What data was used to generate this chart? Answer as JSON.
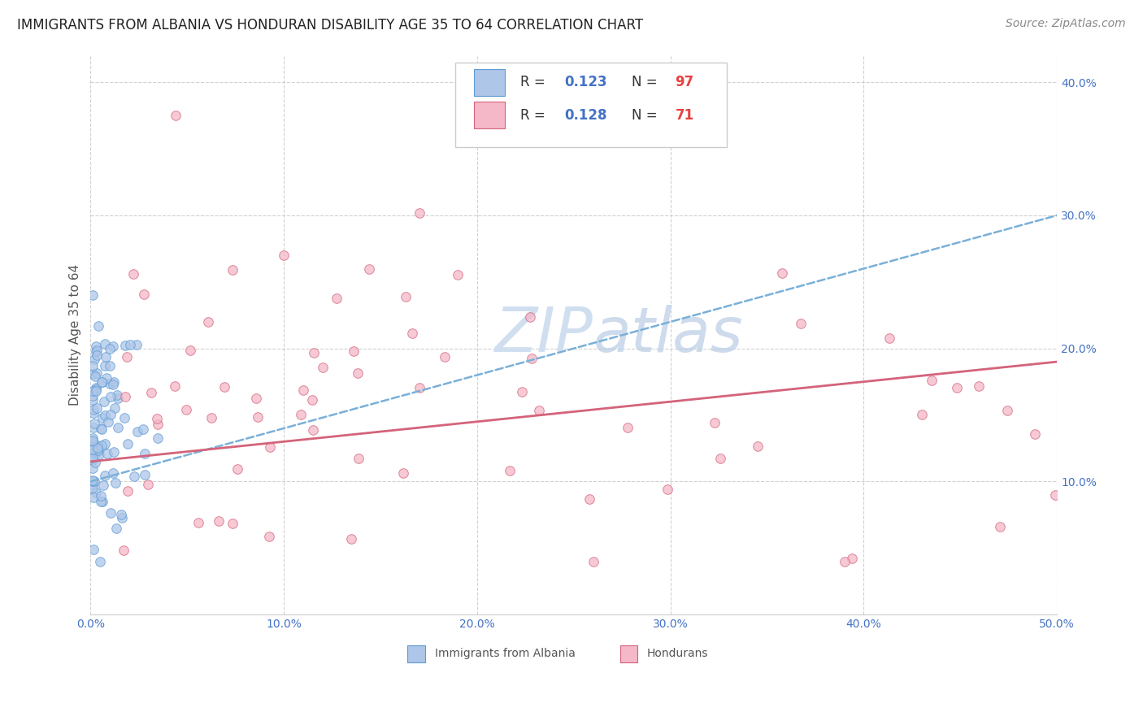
{
  "title": "IMMIGRANTS FROM ALBANIA VS HONDURAN DISABILITY AGE 35 TO 64 CORRELATION CHART",
  "source": "Source: ZipAtlas.com",
  "ylabel": "Disability Age 35 to 64",
  "xlim": [
    0.0,
    0.5
  ],
  "ylim": [
    0.0,
    0.42
  ],
  "xticks": [
    0.0,
    0.1,
    0.2,
    0.3,
    0.4,
    0.5
  ],
  "yticks": [
    0.1,
    0.2,
    0.3,
    0.4
  ],
  "xticklabels": [
    "0.0%",
    "10.0%",
    "20.0%",
    "30.0%",
    "40.0%",
    "50.0%"
  ],
  "yticklabels": [
    "10.0%",
    "20.0%",
    "30.0%",
    "40.0%"
  ],
  "background_color": "#ffffff",
  "grid_color": "#cccccc",
  "albania_color": "#aec6e8",
  "albania_edge_color": "#5b9bd5",
  "honduran_color": "#f4b8c8",
  "honduran_edge_color": "#d4637a",
  "albania_trend_color": "#7ab0d8",
  "honduran_trend_color": "#d4637a",
  "tick_color": "#4472c4",
  "ylabel_color": "#555555",
  "title_color": "#222222",
  "source_color": "#888888",
  "watermark_color": "#d0dff0",
  "legend_edge_color": "#cccccc",
  "bottom_legend_text_color": "#555555",
  "albania_R": "0.123",
  "albania_N": "97",
  "honduran_R": "0.128",
  "honduran_N": "71",
  "legend_R_color": "#4472c4",
  "legend_N_color": "#e84040",
  "alb_trend_start_y": 0.1,
  "alb_trend_end_y": 0.3,
  "hon_trend_start_y": 0.115,
  "hon_trend_end_y": 0.19,
  "title_fontsize": 12,
  "tick_fontsize": 10,
  "legend_fontsize": 12,
  "source_fontsize": 10,
  "ylabel_fontsize": 11
}
